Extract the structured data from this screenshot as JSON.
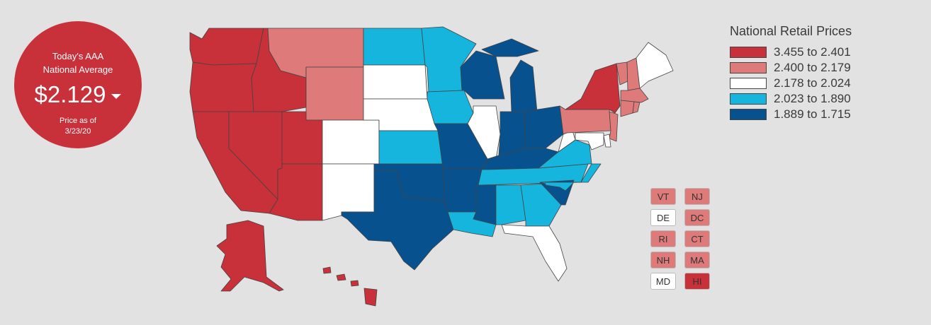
{
  "national_average": {
    "heading_line1": "Today's AAA",
    "heading_line2": "National Average",
    "price": "$2.129",
    "price_as_of_line1": "Price as of",
    "price_as_of_line2": "3/23/20"
  },
  "legend": {
    "title": "National Retail Prices",
    "ranges": [
      {
        "label": "3.455 to 2.401",
        "color": "#c8303a"
      },
      {
        "label": "2.400 to 2.179",
        "color": "#df7a7a"
      },
      {
        "label": "2.178 to 2.024",
        "color": "#ffffff"
      },
      {
        "label": "2.023 to 1.890",
        "color": "#16b5de"
      },
      {
        "label": "1.889 to 1.715",
        "color": "#07518f"
      }
    ]
  },
  "small_states": [
    {
      "code": "VT",
      "tier": 1
    },
    {
      "code": "NJ",
      "tier": 1
    },
    {
      "code": "DE",
      "tier": 2
    },
    {
      "code": "DC",
      "tier": 1
    },
    {
      "code": "RI",
      "tier": 1
    },
    {
      "code": "CT",
      "tier": 1
    },
    {
      "code": "NH",
      "tier": 1
    },
    {
      "code": "MA",
      "tier": 1
    },
    {
      "code": "MD",
      "tier": 2
    },
    {
      "code": "HI",
      "tier": 0
    }
  ],
  "map_state_tiers": {
    "WA": 0,
    "OR": 0,
    "CA": 0,
    "NV": 0,
    "ID": 0,
    "UT": 0,
    "AZ": 0,
    "AK": 0,
    "HI": 0,
    "NY": 0,
    "MT": 1,
    "WY": 1,
    "PA": 1,
    "VT": 1,
    "NH": 1,
    "MA": 1,
    "CT": 1,
    "RI": 1,
    "NJ": 1,
    "CO": 2,
    "NM": 2,
    "SD": 2,
    "NE": 2,
    "IL": 2,
    "WV": 2,
    "FL": 2,
    "ME": 2,
    "MD": 2,
    "DE": 2,
    "ND": 3,
    "MN": 3,
    "IA": 3,
    "KS": 3,
    "LA": 3,
    "AL": 3,
    "GA": 3,
    "TN": 3,
    "NC": 3,
    "VA": 3,
    "WI": 4,
    "MI": 4,
    "MO": 4,
    "OK": 4,
    "TX": 4,
    "AR": 4,
    "MS": 4,
    "IN": 4,
    "OH": 4,
    "KY": 4,
    "SC": 4
  }
}
